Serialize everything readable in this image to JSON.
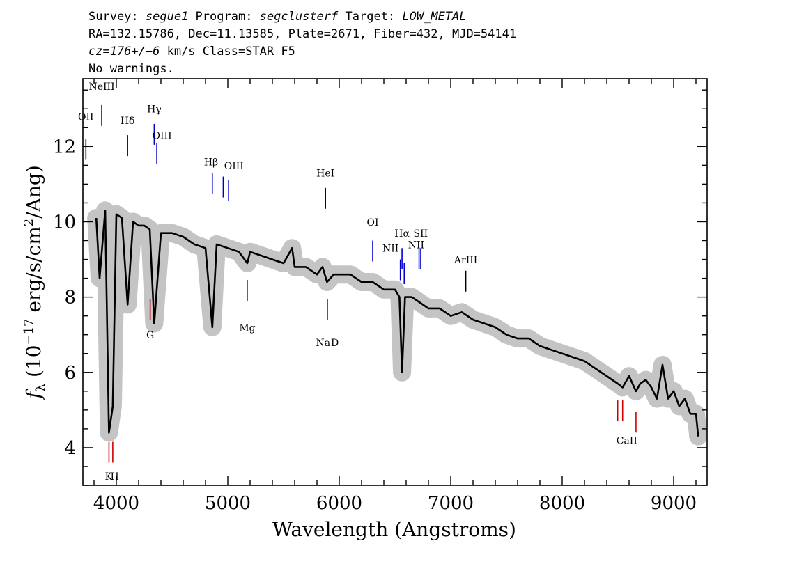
{
  "header": {
    "line1": {
      "a": "Survey: ",
      "survey": "segue1",
      "b": " Program: ",
      "program": "segclusterf",
      "c": " Target: ",
      "target": "LOW_METAL"
    },
    "line2": "RA=132.15786, Dec=11.13585, Plate=2671, Fiber=432, MJD=54141",
    "line3": {
      "cz": "cz=176+/−6",
      "rest": " km/s Class=STAR F5"
    },
    "line4": "No warnings."
  },
  "chart_data": {
    "type": "line",
    "xlabel": "Wavelength (Angstroms)",
    "ylabel": {
      "f": "f",
      "sub": "λ",
      "open": " (10",
      "exp": "−17",
      "mid": " erg/s/cm",
      "exp2": "2",
      "close": "/Ang)"
    },
    "xlim": [
      3700,
      9300
    ],
    "ylim": [
      3.0,
      13.8
    ],
    "x_ticks": [
      4000,
      5000,
      6000,
      7000,
      8000,
      9000
    ],
    "y_ticks": [
      4,
      6,
      8,
      10,
      12
    ],
    "grid": false,
    "series": [
      {
        "role": "flux",
        "color": "#000000",
        "x": [
          3820,
          3850,
          3900,
          3934,
          3968,
          4000,
          4050,
          4101,
          4150,
          4200,
          4250,
          4300,
          4340,
          4400,
          4500,
          4600,
          4700,
          4800,
          4861,
          4900,
          5000,
          5100,
          5175,
          5200,
          5300,
          5400,
          5500,
          5577,
          5600,
          5700,
          5800,
          5850,
          5890,
          5950,
          6000,
          6100,
          6200,
          6300,
          6400,
          6500,
          6540,
          6563,
          6590,
          6650,
          6700,
          6800,
          6900,
          7000,
          7100,
          7200,
          7300,
          7400,
          7500,
          7600,
          7700,
          7800,
          7900,
          8000,
          8100,
          8200,
          8300,
          8400,
          8498,
          8542,
          8600,
          8662,
          8700,
          8750,
          8800,
          8850,
          8900,
          8950,
          9000,
          9050,
          9100,
          9150,
          9200,
          9220
        ],
        "y": [
          10.1,
          8.5,
          10.3,
          4.4,
          5.1,
          10.2,
          10.1,
          7.8,
          10.0,
          9.9,
          9.9,
          9.8,
          7.3,
          9.7,
          9.7,
          9.6,
          9.4,
          9.3,
          7.2,
          9.4,
          9.3,
          9.2,
          8.9,
          9.2,
          9.1,
          9.0,
          8.9,
          9.3,
          8.8,
          8.8,
          8.6,
          8.8,
          8.4,
          8.6,
          8.6,
          8.6,
          8.4,
          8.4,
          8.2,
          8.2,
          8.0,
          6.0,
          8.0,
          8.0,
          7.9,
          7.7,
          7.7,
          7.5,
          7.6,
          7.4,
          7.3,
          7.2,
          7.0,
          6.9,
          6.9,
          6.7,
          6.6,
          6.5,
          6.4,
          6.3,
          6.1,
          5.9,
          5.7,
          5.6,
          5.9,
          5.5,
          5.7,
          5.8,
          5.6,
          5.3,
          6.2,
          5.3,
          5.5,
          5.1,
          5.3,
          4.9,
          4.9,
          4.3
        ]
      },
      {
        "role": "error_band",
        "color": "#c4c4c4"
      }
    ],
    "emission_lines": [
      {
        "label": "OII",
        "x": 3727,
        "y": 12.2,
        "color": "#000000"
      },
      {
        "label": "NeIII",
        "x": 3869,
        "y": 13.1,
        "color": "#0000cc"
      },
      {
        "label": "Hδ",
        "x": 4101,
        "y": 12.3,
        "color": "#0000cc"
      },
      {
        "label": "Hγ",
        "x": 4340,
        "y": 12.6,
        "color": "#0000cc"
      },
      {
        "label": "OIII",
        "x": 4363,
        "y": 12.1,
        "color": "#0000cc"
      },
      {
        "label": "Hβ",
        "x": 4861,
        "y": 11.3,
        "color": "#0000cc"
      },
      {
        "label": "OIII",
        "x": 4959,
        "y": 11.2,
        "color": "#0000cc"
      },
      {
        "label": "OIII",
        "x": 5007,
        "y": 11.1,
        "color": "#0000cc"
      },
      {
        "label": "HeI",
        "x": 5876,
        "y": 10.9,
        "color": "#000000"
      },
      {
        "label": "OI",
        "x": 6300,
        "y": 9.5,
        "color": "#0000cc"
      },
      {
        "label": "NII",
        "x": 6548,
        "y": 9.0,
        "color": "#0000cc"
      },
      {
        "label": "Hα",
        "x": 6563,
        "y": 9.3,
        "color": "#0000cc"
      },
      {
        "label": "NII",
        "x": 6583,
        "y": 8.9,
        "color": "#0000cc"
      },
      {
        "label": "SII",
        "x": 6716,
        "y": 9.3,
        "color": "#0000cc"
      },
      {
        "label": "SII",
        "x": 6731,
        "y": 9.3,
        "color": "#0000cc"
      },
      {
        "label": "ArIII",
        "x": 7135,
        "y": 8.7,
        "color": "#000000"
      }
    ],
    "absorption_lines": [
      {
        "label": "K",
        "x": 3934,
        "y": 3.6,
        "color": "#cc0000"
      },
      {
        "label": "H",
        "x": 3968,
        "y": 3.6,
        "color": "#cc0000"
      },
      {
        "label": "G",
        "x": 4304,
        "y": 7.4,
        "color": "#cc0000"
      },
      {
        "label": "Mg",
        "x": 5175,
        "y": 7.9,
        "color": "#cc0000"
      },
      {
        "label": "Na D",
        "x": 5894,
        "y": 7.4,
        "color": "#cc0000"
      },
      {
        "label": "CaII",
        "x": 8498,
        "y": 4.7,
        "color": "#cc0000"
      },
      {
        "label": "CaII",
        "x": 8542,
        "y": 4.7,
        "color": "#cc0000"
      },
      {
        "label": "CaII",
        "x": 8662,
        "y": 4.4,
        "color": "#cc0000"
      }
    ],
    "line_marker_labels": [
      {
        "text": "OII",
        "x": 3727,
        "y": 12.7
      },
      {
        "text": "NeIII",
        "x": 3869,
        "y": 13.5
      },
      {
        "text": "Hδ",
        "x": 4101,
        "y": 12.6
      },
      {
        "text": "Hγ",
        "x": 4340,
        "y": 12.9
      },
      {
        "text": "OIII",
        "x": 4410,
        "y": 12.2
      },
      {
        "text": "Hβ",
        "x": 4850,
        "y": 11.5
      },
      {
        "text": "OIII",
        "x": 5055,
        "y": 11.4
      },
      {
        "text": "HeI",
        "x": 5876,
        "y": 11.2
      },
      {
        "text": "OI",
        "x": 6300,
        "y": 9.9
      },
      {
        "text": "NII",
        "x": 6460,
        "y": 9.2
      },
      {
        "text": "Hα",
        "x": 6563,
        "y": 9.6
      },
      {
        "text": "SII",
        "x": 6730,
        "y": 9.6
      },
      {
        "text": "NII",
        "x": 6690,
        "y": 9.3
      },
      {
        "text": "ArIII",
        "x": 7135,
        "y": 8.9
      },
      {
        "text": "K",
        "x": 3930,
        "y": 3.15
      },
      {
        "text": "H",
        "x": 3985,
        "y": 3.15
      },
      {
        "text": "G",
        "x": 4304,
        "y": 6.9
      },
      {
        "text": "Mg",
        "x": 5175,
        "y": 7.1
      },
      {
        "text": "Na",
        "x": 5855,
        "y": 6.7
      },
      {
        "text": "D",
        "x": 5960,
        "y": 6.7
      },
      {
        "text": "CaII",
        "x": 8580,
        "y": 4.1
      }
    ]
  }
}
